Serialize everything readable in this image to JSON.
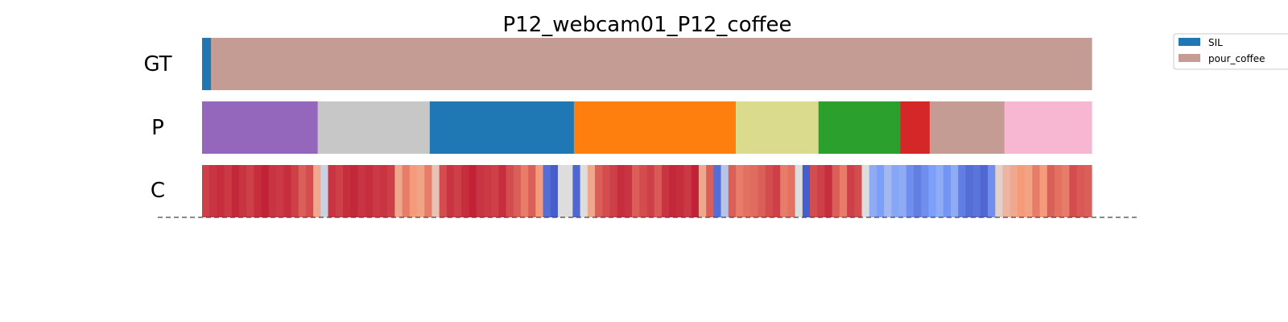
{
  "chart_data": {
    "type": "segmentation-timeline",
    "title": "P12_webcam01_P12_coffee",
    "x_range": [
      0,
      100
    ],
    "rows": [
      {
        "label": "GT",
        "segments": [
          {
            "start": 0.0,
            "end": 1.0,
            "color": "#1f77b4"
          },
          {
            "start": 1.0,
            "end": 100.0,
            "color": "#c49c94"
          }
        ]
      },
      {
        "label": "P",
        "segments": [
          {
            "start": 0.0,
            "end": 13.0,
            "color": "#9467bd"
          },
          {
            "start": 13.0,
            "end": 25.6,
            "color": "#c7c7c7"
          },
          {
            "start": 25.6,
            "end": 41.8,
            "color": "#1f77b4"
          },
          {
            "start": 41.8,
            "end": 60.0,
            "color": "#ff7f0e"
          },
          {
            "start": 60.0,
            "end": 69.3,
            "color": "#dbdb8d"
          },
          {
            "start": 69.3,
            "end": 78.5,
            "color": "#2ca02c"
          },
          {
            "start": 78.5,
            "end": 81.8,
            "color": "#d62728"
          },
          {
            "start": 81.8,
            "end": 90.2,
            "color": "#c49c94"
          },
          {
            "start": 90.2,
            "end": 100.0,
            "color": "#f7b6d2"
          }
        ]
      },
      {
        "label": "C",
        "colormap": "coolwarm",
        "values": [
          0.9,
          0.92,
          0.93,
          0.91,
          0.94,
          0.92,
          0.9,
          0.93,
          0.95,
          0.92,
          0.91,
          0.93,
          0.9,
          0.85,
          0.88,
          0.7,
          0.45,
          0.92,
          0.9,
          0.93,
          0.94,
          0.92,
          0.93,
          0.91,
          0.92,
          0.9,
          0.7,
          0.8,
          0.75,
          0.72,
          0.8,
          0.6,
          0.88,
          0.92,
          0.9,
          0.93,
          0.95,
          0.92,
          0.91,
          0.9,
          0.93,
          0.88,
          0.85,
          0.8,
          0.85,
          0.75,
          0.1,
          0.05,
          0.5,
          0.5,
          0.08,
          0.5,
          0.7,
          0.85,
          0.88,
          0.9,
          0.93,
          0.92,
          0.85,
          0.88,
          0.9,
          0.86,
          0.92,
          0.94,
          0.93,
          0.91,
          0.95,
          0.7,
          0.85,
          0.1,
          0.4,
          0.85,
          0.8,
          0.82,
          0.83,
          0.85,
          0.88,
          0.9,
          0.8,
          0.82,
          0.5,
          0.05,
          0.88,
          0.9,
          0.93,
          0.85,
          0.8,
          0.9,
          0.88,
          0.5,
          0.3,
          0.25,
          0.35,
          0.28,
          0.3,
          0.2,
          0.15,
          0.2,
          0.25,
          0.3,
          0.22,
          0.3,
          0.15,
          0.1,
          0.12,
          0.08,
          0.2,
          0.55,
          0.65,
          0.7,
          0.75,
          0.72,
          0.8,
          0.75,
          0.85,
          0.82,
          0.8,
          0.88,
          0.86,
          0.85
        ]
      }
    ],
    "legend": {
      "placement": "top-right",
      "entries": [
        {
          "name": "SIL",
          "color": "#1f77b4"
        },
        {
          "name": "pour_coffee",
          "color": "#c49c94"
        }
      ]
    }
  }
}
